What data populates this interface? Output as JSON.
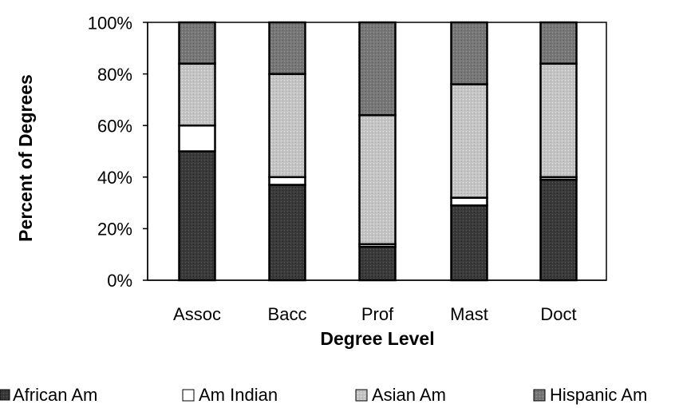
{
  "chart_data": {
    "type": "bar",
    "stacked": true,
    "percent": true,
    "categories": [
      "Assoc",
      "Bacc",
      "Prof",
      "Mast",
      "Doct"
    ],
    "series": [
      {
        "name": "African Am",
        "values": [
          50,
          37,
          13,
          29,
          39
        ],
        "color": "#3c3c3c"
      },
      {
        "name": "Am Indian",
        "values": [
          10,
          3,
          1,
          3,
          1
        ],
        "color": "#ffffff"
      },
      {
        "name": "Asian Am",
        "values": [
          24,
          40,
          50,
          44,
          44
        ],
        "color": "#c8c8c8"
      },
      {
        "name": "Hispanic Am",
        "values": [
          16,
          20,
          36,
          24,
          16
        ],
        "color": "#787878"
      }
    ],
    "y_ticks": [
      "0%",
      "20%",
      "40%",
      "60%",
      "80%",
      "100%"
    ],
    "ylim": [
      0,
      100
    ],
    "xlabel": "Degree Level",
    "ylabel": "Percent of Degrees",
    "legend_position": "bottom",
    "grid": false
  }
}
